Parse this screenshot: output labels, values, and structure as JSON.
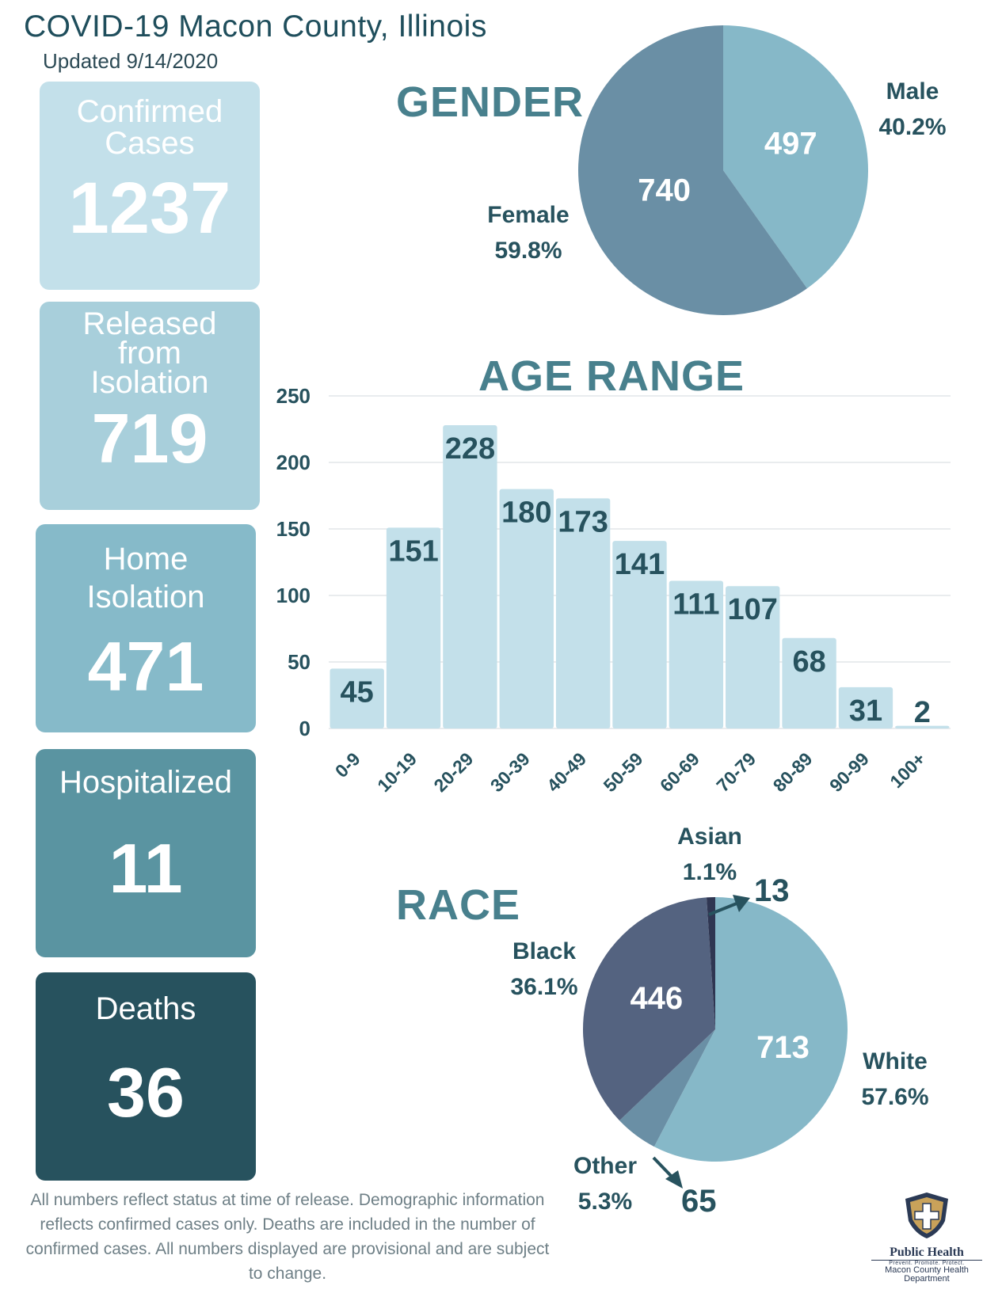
{
  "header": {
    "title": "COVID-19 Macon County, Illinois",
    "updated": "Updated 9/14/2020"
  },
  "stats": [
    {
      "label": "Confirmed Cases",
      "value": "1237"
    },
    {
      "label": "Released from Isolation",
      "value": "719"
    },
    {
      "label": "Home Isolation",
      "value": "471"
    },
    {
      "label": "Hospitalized",
      "value": "11"
    },
    {
      "label": "Deaths",
      "value": "36"
    }
  ],
  "sections": {
    "gender": "GENDER",
    "age": "AGE RANGE",
    "race": "RACE"
  },
  "footnote": "All numbers reflect status at time of release. Demographic information reflects confirmed cases only. Deaths are included in the number of confirmed cases. All numbers displayed are provisional and are subject to change.",
  "logo": {
    "name": "Public Health",
    "tagline": "Prevent. Promote. Protect.",
    "dept": "Macon County Health Department"
  },
  "colors": {
    "dark": "#27525e",
    "accent": "#48808d",
    "light": "#c3e0ea"
  },
  "chart_data": [
    {
      "type": "pie",
      "title": "GENDER",
      "labels": [
        "Male",
        "Female"
      ],
      "values": [
        497,
        740
      ],
      "percents": [
        "40.2%",
        "59.8%"
      ],
      "colors": [
        "#86b8c8",
        "#6a8fa5"
      ]
    },
    {
      "type": "bar",
      "title": "AGE RANGE",
      "categories": [
        "0-9",
        "10-19",
        "20-29",
        "30-39",
        "40-49",
        "50-59",
        "60-69",
        "70-79",
        "80-89",
        "90-99",
        "100+"
      ],
      "values": [
        45,
        151,
        228,
        180,
        173,
        141,
        111,
        107,
        68,
        31,
        2
      ],
      "ylim": [
        0,
        250
      ],
      "yticks": [
        0,
        50,
        100,
        150,
        200,
        250
      ],
      "grid": true,
      "color": "#c3e0ea"
    },
    {
      "type": "pie",
      "title": "RACE",
      "labels": [
        "White",
        "Other",
        "Black",
        "Asian"
      ],
      "values": [
        713,
        65,
        446,
        13
      ],
      "percents": [
        "57.6%",
        "5.3%",
        "36.1%",
        "1.1%"
      ],
      "colors": [
        "#86b8c8",
        "#6a8fa5",
        "#546380",
        "#2f3652"
      ]
    }
  ]
}
